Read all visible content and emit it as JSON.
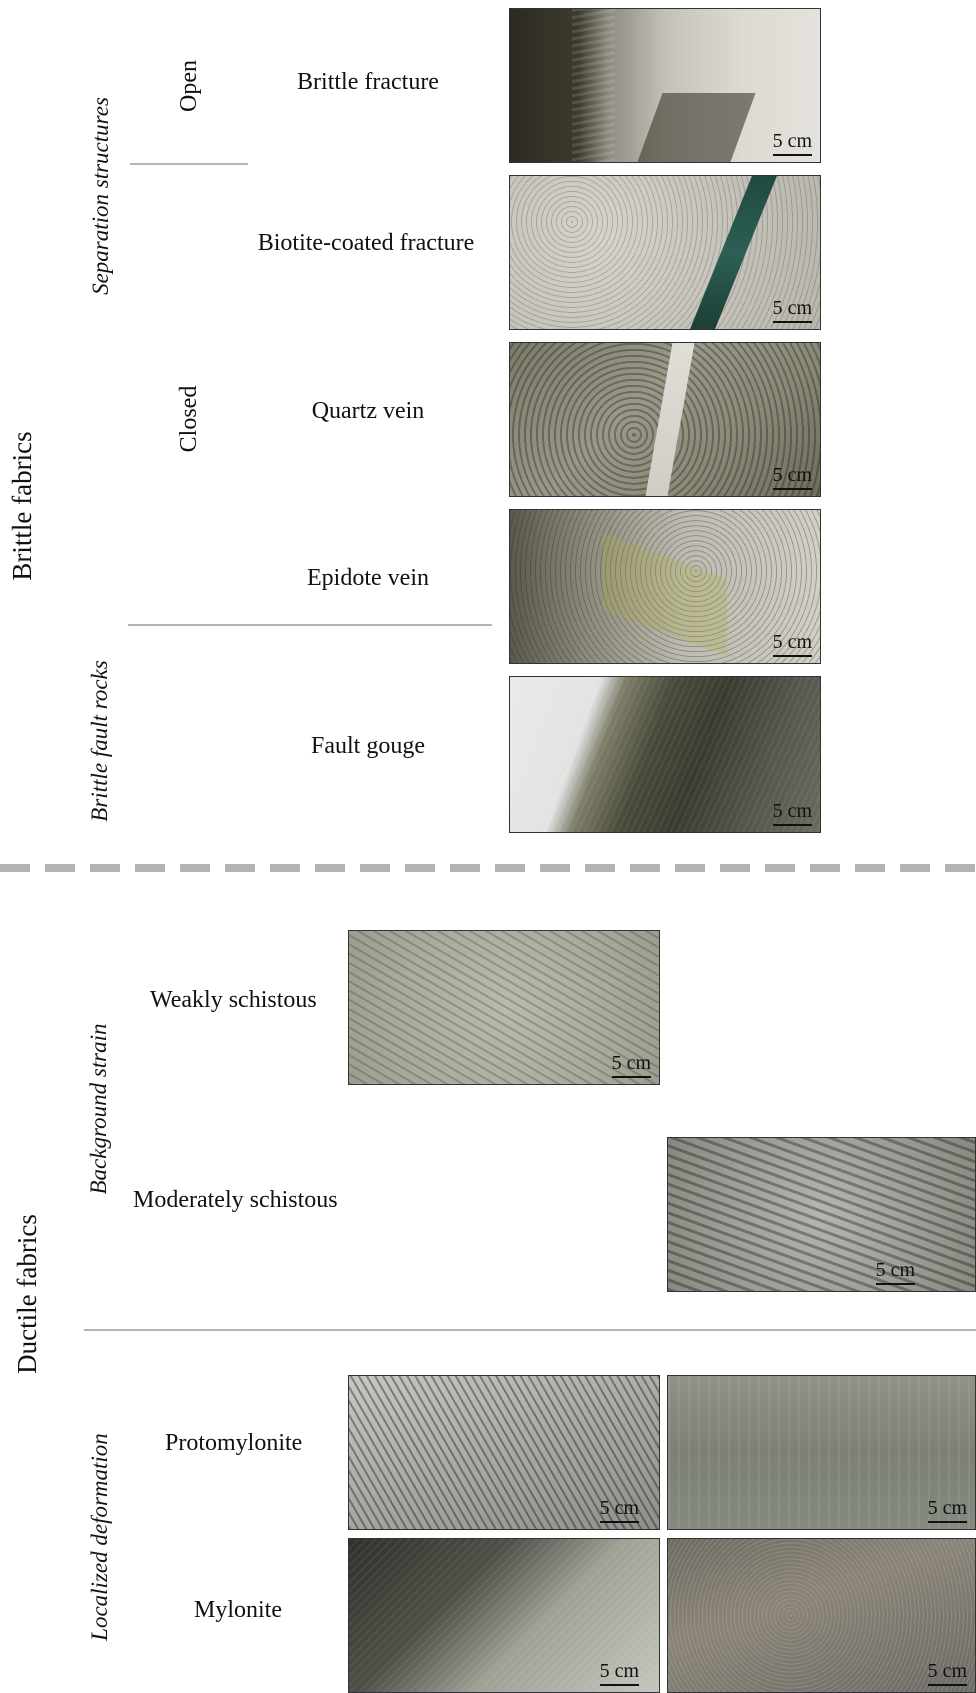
{
  "brittle": {
    "title": "Brittle fabrics",
    "separation": "Separation structures",
    "fault_rocks": "Brittle fault rocks",
    "open": "Open",
    "closed": "Closed",
    "items": [
      {
        "label": "Brittle fracture",
        "scale": "5 cm"
      },
      {
        "label": "Biotite-coated fracture",
        "scale": "5 cm"
      },
      {
        "label": "Quartz vein",
        "scale": "5 cm"
      },
      {
        "label": "Epidote vein",
        "scale": "5 cm"
      },
      {
        "label": "Fault gouge",
        "scale": "5 cm"
      }
    ]
  },
  "ductile": {
    "title": "Ductile fabrics",
    "background": "Background strain",
    "localized": "Localized deformation",
    "weak": {
      "label": "Weakly schistous",
      "scale": "5 cm"
    },
    "moderate": {
      "label": "Moderately schistous",
      "scale": "5 cm"
    },
    "protomylonite": {
      "label": "Protomylonite",
      "scale_a": "5 cm",
      "scale_b": "5 cm"
    },
    "mylonite": {
      "label": "Mylonite",
      "scale_a": "5 cm",
      "scale_b": "5 cm"
    }
  },
  "colors": {
    "divider": "#b5b5b5",
    "dashed_divider": "#b3b3b3"
  }
}
